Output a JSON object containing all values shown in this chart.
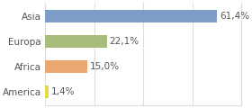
{
  "categories": [
    "Asia",
    "Europa",
    "Africa",
    "America"
  ],
  "values": [
    61.4,
    22.1,
    15.0,
    1.4
  ],
  "labels": [
    "61,4%",
    "22,1%",
    "15,0%",
    "1,4%"
  ],
  "bar_colors": [
    "#7b9dc8",
    "#a8bc7c",
    "#e8a870",
    "#e8d840"
  ],
  "background_color": "#ffffff",
  "plot_bg_color": "#ffffff",
  "xlim": [
    0,
    70
  ],
  "bar_height": 0.5,
  "fontsize": 7.5,
  "label_color": "#555555",
  "grid_color": "#dddddd"
}
